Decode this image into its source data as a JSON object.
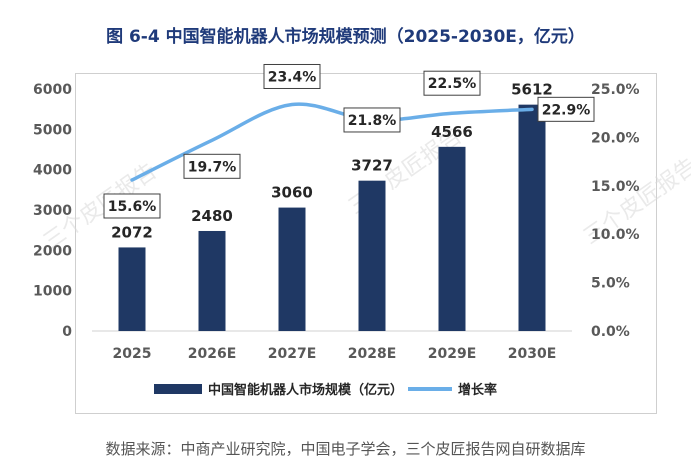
{
  "title": "图  6-4  中国智能机器人市场规模预测（2025-2030E，亿元）",
  "source": "数据来源：中商产业研究院，中国电子学会，三个皮匠报告网自研数据库",
  "watermark": "三个皮匠报告",
  "colors": {
    "bar": "#1f3864",
    "line": "#6aaee8",
    "title": "#1f3a7a"
  },
  "chart_data": {
    "type": "bar",
    "title": "中国智能机器人市场规模预测（2025-2030E，亿元）",
    "categories": [
      "2025",
      "2026E",
      "2027E",
      "2028E",
      "2029E",
      "2030E"
    ],
    "series": [
      {
        "name": "中国智能机器人市场规模（亿元）",
        "type": "bar",
        "axis": "left",
        "values": [
          2072,
          2480,
          3060,
          3727,
          4566,
          5612
        ],
        "labels": [
          "2072",
          "2480",
          "3060",
          "3727",
          "4566",
          "5612"
        ]
      },
      {
        "name": "增长率",
        "type": "line",
        "axis": "right",
        "values": [
          15.6,
          19.7,
          23.4,
          21.8,
          22.5,
          22.9
        ],
        "labels": [
          "15.6%",
          "19.7%",
          "23.4%",
          "21.8%",
          "22.5%",
          "22.9%"
        ]
      }
    ],
    "ylim": [
      0,
      6000
    ],
    "y_ticks": [
      "0",
      "1000",
      "2000",
      "3000",
      "4000",
      "5000",
      "6000"
    ],
    "y2lim": [
      0,
      25
    ],
    "y2_ticks": [
      "0.0%",
      "5.0%",
      "10.0%",
      "15.0%",
      "20.0%",
      "25.0%"
    ],
    "legend_position": "bottom"
  }
}
